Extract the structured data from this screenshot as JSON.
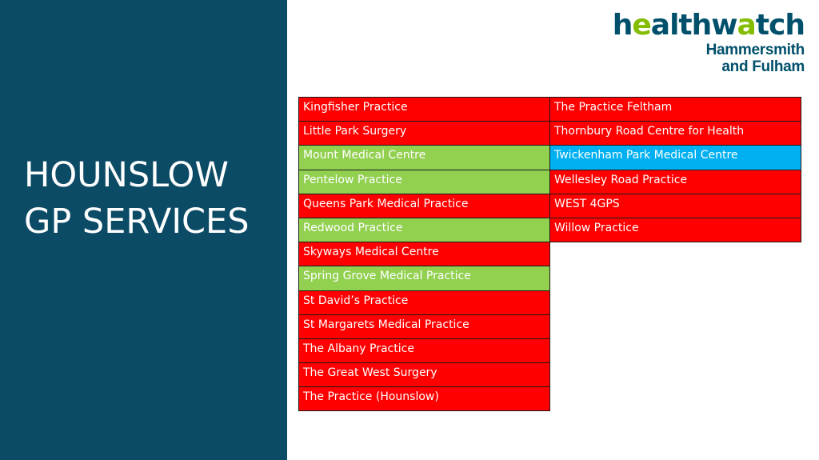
{
  "title_lines": [
    "HOUNSLOW",
    "GP SERVICES"
  ],
  "logo": {
    "word_parts": [
      "h",
      "e",
      "althw",
      "a",
      "tch"
    ],
    "line1": "Hammersmith",
    "line2": "and Fulham"
  },
  "colors": {
    "panel": "#0c4b66",
    "red": "#ff0000",
    "green": "#92d050",
    "blue": "#00b0f0"
  },
  "practices_left": [
    {
      "name": "Kingfisher Practice",
      "status": "red"
    },
    {
      "name": "Little Park Surgery",
      "status": "red"
    },
    {
      "name": "Mount Medical Centre",
      "status": "green"
    },
    {
      "name": "Pentelow Practice",
      "status": "green"
    },
    {
      "name": "Queens Park Medical Practice",
      "status": "red"
    },
    {
      "name": "Redwood Practice",
      "status": "green"
    },
    {
      "name": "Skyways Medical Centre",
      "status": "red"
    },
    {
      "name": "Spring Grove Medical Practice",
      "status": "green"
    },
    {
      "name": "St David’s Practice",
      "status": "red"
    },
    {
      "name": "St Margarets Medical Practice",
      "status": "red"
    },
    {
      "name": "The Albany Practice",
      "status": "red"
    },
    {
      "name": "The Great West Surgery",
      "status": "red"
    },
    {
      "name": "The Practice (Hounslow)",
      "status": "red"
    }
  ],
  "practices_right": [
    {
      "name": "The Practice Feltham",
      "status": "red"
    },
    {
      "name": "Thornbury Road Centre for Health",
      "status": "red"
    },
    {
      "name": "Twickenham Park Medical Centre",
      "status": "blue"
    },
    {
      "name": "Wellesley Road Practice",
      "status": "red"
    },
    {
      "name": "WEST 4GPS",
      "status": "red"
    },
    {
      "name": "Willow Practice",
      "status": "red"
    }
  ]
}
